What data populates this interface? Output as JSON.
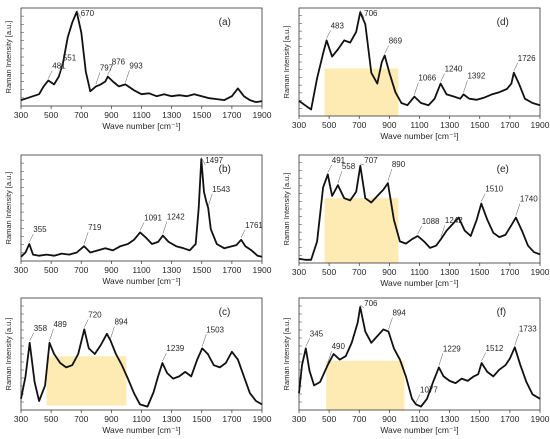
{
  "chart_data": [
    {
      "type": "line",
      "panel_label": "(a)",
      "xlabel": "Wave number [cm⁻¹]",
      "ylabel": "Raman Intensity [a.u.]",
      "xlim": [
        300,
        1900
      ],
      "x_ticks": [
        "300",
        "500",
        "700",
        "900",
        "1100",
        "1300",
        "1500",
        "1700",
        "1900"
      ],
      "peaks": [
        {
          "x": 481,
          "label": "481"
        },
        {
          "x": 551,
          "label": "551"
        },
        {
          "x": 670,
          "label": "670"
        },
        {
          "x": 797,
          "label": "797"
        },
        {
          "x": 876,
          "label": "876"
        },
        {
          "x": 993,
          "label": "993"
        }
      ],
      "series": [
        {
          "x": [
            300,
            340,
            380,
            420,
            450,
            481,
            520,
            551,
            580,
            610,
            640,
            670,
            700,
            730,
            760,
            797,
            830,
            860,
            876,
            910,
            950,
            993,
            1050,
            1100,
            1150,
            1200,
            1250,
            1300,
            1350,
            1400,
            1450,
            1500,
            1550,
            1600,
            1650,
            1700,
            1740,
            1780,
            1820,
            1860,
            1900
          ],
          "y": [
            0.06,
            0.08,
            0.1,
            0.12,
            0.2,
            0.26,
            0.22,
            0.3,
            0.45,
            0.7,
            0.85,
            0.96,
            0.75,
            0.35,
            0.15,
            0.2,
            0.22,
            0.25,
            0.3,
            0.25,
            0.2,
            0.22,
            0.16,
            0.12,
            0.13,
            0.1,
            0.12,
            0.1,
            0.11,
            0.1,
            0.12,
            0.1,
            0.08,
            0.07,
            0.06,
            0.1,
            0.18,
            0.1,
            0.06,
            0.04,
            0.05
          ]
        }
      ]
    },
    {
      "type": "line",
      "panel_label": "(b)",
      "xlabel": "Wave number [cm⁻¹]",
      "ylabel": "Raman Intensity [a.u.]",
      "xlim": [
        300,
        1900
      ],
      "x_ticks": [
        "300",
        "500",
        "700",
        "900",
        "1100",
        "1300",
        "1500",
        "1700",
        "1900"
      ],
      "peaks": [
        {
          "x": 355,
          "label": "355"
        },
        {
          "x": 719,
          "label": "719"
        },
        {
          "x": 1091,
          "label": "1091"
        },
        {
          "x": 1242,
          "label": "1242"
        },
        {
          "x": 1497,
          "label": "1497"
        },
        {
          "x": 1543,
          "label": "1543"
        },
        {
          "x": 1761,
          "label": "1761"
        }
      ],
      "series": [
        {
          "x": [
            300,
            330,
            355,
            380,
            420,
            470,
            520,
            570,
            620,
            670,
            719,
            760,
            810,
            860,
            910,
            960,
            1010,
            1050,
            1091,
            1130,
            1170,
            1210,
            1242,
            1280,
            1330,
            1380,
            1420,
            1460,
            1480,
            1497,
            1515,
            1530,
            1543,
            1560,
            1600,
            1650,
            1700,
            1730,
            1761,
            1790,
            1830,
            1870,
            1900
          ],
          "y": [
            0.04,
            0.08,
            0.16,
            0.06,
            0.05,
            0.06,
            0.05,
            0.07,
            0.06,
            0.08,
            0.14,
            0.08,
            0.1,
            0.12,
            0.1,
            0.14,
            0.16,
            0.2,
            0.27,
            0.22,
            0.16,
            0.18,
            0.24,
            0.18,
            0.14,
            0.12,
            0.1,
            0.16,
            0.5,
            0.96,
            0.65,
            0.56,
            0.5,
            0.3,
            0.16,
            0.12,
            0.14,
            0.15,
            0.2,
            0.14,
            0.1,
            0.05,
            0.04
          ]
        }
      ]
    },
    {
      "type": "line",
      "panel_label": "(c)",
      "xlabel": "Wave number [cm⁻¹]",
      "ylabel": "Raman Intensity [a.u.]",
      "xlim": [
        300,
        1900
      ],
      "x_ticks": [
        "300",
        "500",
        "700",
        "900",
        "1100",
        "1300",
        "1500",
        "1700",
        "1900"
      ],
      "peaks": [
        {
          "x": 358,
          "label": "358"
        },
        {
          "x": 489,
          "label": "489"
        },
        {
          "x": 720,
          "label": "720"
        },
        {
          "x": 894,
          "label": "894"
        },
        {
          "x": 1239,
          "label": "1239"
        },
        {
          "x": 1503,
          "label": "1503"
        }
      ],
      "highlight": {
        "x": [
          470,
          1000
        ],
        "y": [
          0.04,
          0.48
        ]
      },
      "series": [
        {
          "x": [
            300,
            330,
            358,
            390,
            420,
            460,
            489,
            520,
            560,
            600,
            640,
            680,
            720,
            750,
            790,
            830,
            870,
            894,
            930,
            970,
            1010,
            1050,
            1090,
            1140,
            1180,
            1210,
            1239,
            1270,
            1310,
            1350,
            1390,
            1430,
            1470,
            1503,
            1540,
            1580,
            1620,
            1660,
            1700,
            1740,
            1780,
            1820,
            1860,
            1900
          ],
          "y": [
            0.1,
            0.3,
            0.6,
            0.25,
            0.08,
            0.22,
            0.6,
            0.5,
            0.42,
            0.38,
            0.4,
            0.5,
            0.72,
            0.55,
            0.5,
            0.58,
            0.68,
            0.62,
            0.5,
            0.4,
            0.28,
            0.15,
            0.05,
            0.03,
            0.16,
            0.3,
            0.42,
            0.33,
            0.28,
            0.3,
            0.34,
            0.3,
            0.45,
            0.55,
            0.5,
            0.4,
            0.38,
            0.42,
            0.52,
            0.45,
            0.3,
            0.15,
            0.08,
            0.05
          ]
        }
      ]
    },
    {
      "type": "line",
      "panel_label": "(d)",
      "xlabel": "Wave number [cm⁻¹]",
      "ylabel": "Raman Intensity [a.u.]",
      "xlim": [
        300,
        1900
      ],
      "x_ticks": [
        "300",
        "500",
        "700",
        "900",
        "1100",
        "1300",
        "1500",
        "1700",
        "1900"
      ],
      "peaks": [
        {
          "x": 483,
          "label": "483"
        },
        {
          "x": 706,
          "label": "706"
        },
        {
          "x": 869,
          "label": "869"
        },
        {
          "x": 1066,
          "label": "1066"
        },
        {
          "x": 1240,
          "label": "1240"
        },
        {
          "x": 1392,
          "label": "1392"
        },
        {
          "x": 1726,
          "label": "1726"
        }
      ],
      "highlight": {
        "x": [
          470,
          960
        ],
        "y": [
          0.0,
          0.44
        ]
      },
      "series": [
        {
          "x": [
            300,
            340,
            380,
            420,
            460,
            483,
            520,
            560,
            600,
            640,
            680,
            706,
            740,
            780,
            820,
            850,
            869,
            900,
            940,
            980,
            1020,
            1066,
            1110,
            1160,
            1200,
            1240,
            1280,
            1330,
            1370,
            1392,
            1430,
            1480,
            1530,
            1580,
            1630,
            1680,
            1710,
            1726,
            1760,
            1800,
            1850,
            1900
          ],
          "y": [
            0.14,
            0.1,
            0.06,
            0.35,
            0.58,
            0.7,
            0.55,
            0.62,
            0.7,
            0.68,
            0.78,
            0.96,
            0.85,
            0.4,
            0.3,
            0.5,
            0.56,
            0.4,
            0.22,
            0.12,
            0.1,
            0.18,
            0.12,
            0.1,
            0.16,
            0.3,
            0.2,
            0.18,
            0.16,
            0.2,
            0.16,
            0.15,
            0.17,
            0.2,
            0.22,
            0.25,
            0.3,
            0.4,
            0.3,
            0.16,
            0.12,
            0.1
          ]
        }
      ]
    },
    {
      "type": "line",
      "panel_label": "(e)",
      "xlabel": "Wave number [cm⁻¹]",
      "ylabel": "Raman Intensity [a.u.]",
      "xlim": [
        300,
        1900
      ],
      "x_ticks": [
        "300",
        "500",
        "700",
        "900",
        "1100",
        "1300",
        "1500",
        "1700",
        "1900"
      ],
      "peaks": [
        {
          "x": 491,
          "label": "491"
        },
        {
          "x": 558,
          "label": "558"
        },
        {
          "x": 707,
          "label": "707"
        },
        {
          "x": 890,
          "label": "890"
        },
        {
          "x": 1088,
          "label": "1088"
        },
        {
          "x": 1242,
          "label": "1242"
        },
        {
          "x": 1510,
          "label": "1510"
        },
        {
          "x": 1740,
          "label": "1740"
        }
      ],
      "highlight": {
        "x": [
          470,
          960
        ],
        "y": [
          0.0,
          0.6
        ]
      },
      "series": [
        {
          "x": [
            300,
            340,
            380,
            420,
            460,
            491,
            520,
            558,
            600,
            640,
            680,
            707,
            740,
            780,
            820,
            860,
            890,
            930,
            970,
            1010,
            1050,
            1088,
            1130,
            1170,
            1210,
            1242,
            1280,
            1320,
            1360,
            1400,
            1440,
            1480,
            1510,
            1550,
            1590,
            1630,
            1670,
            1710,
            1740,
            1780,
            1820,
            1860,
            1900
          ],
          "y": [
            0.04,
            0.03,
            0.03,
            0.2,
            0.7,
            0.82,
            0.62,
            0.72,
            0.6,
            0.58,
            0.66,
            0.9,
            0.6,
            0.56,
            0.62,
            0.68,
            0.74,
            0.4,
            0.2,
            0.18,
            0.22,
            0.25,
            0.2,
            0.14,
            0.16,
            0.22,
            0.3,
            0.36,
            0.42,
            0.3,
            0.25,
            0.4,
            0.55,
            0.4,
            0.28,
            0.24,
            0.26,
            0.35,
            0.42,
            0.3,
            0.16,
            0.1,
            0.08
          ]
        }
      ]
    },
    {
      "type": "line",
      "panel_label": "(f)",
      "xlabel": "Wave number [cm⁻¹]",
      "ylabel": "Raman Intensity [a.u.]",
      "xlim": [
        300,
        1900
      ],
      "x_ticks": [
        "300",
        "500",
        "700",
        "900",
        "1100",
        "1300",
        "1500",
        "1700",
        "1900"
      ],
      "peaks": [
        {
          "x": 345,
          "label": "345"
        },
        {
          "x": 490,
          "label": "490"
        },
        {
          "x": 706,
          "label": "706"
        },
        {
          "x": 894,
          "label": "894"
        },
        {
          "x": 1077,
          "label": "1077"
        },
        {
          "x": 1229,
          "label": "1229"
        },
        {
          "x": 1512,
          "label": "1512"
        },
        {
          "x": 1733,
          "label": "1733"
        }
      ],
      "highlight": {
        "x": [
          480,
          1000
        ],
        "y": [
          0.0,
          0.44
        ]
      },
      "series": [
        {
          "x": [
            300,
            320,
            345,
            370,
            400,
            440,
            490,
            530,
            570,
            610,
            650,
            690,
            706,
            740,
            780,
            820,
            860,
            894,
            930,
            970,
            1010,
            1050,
            1077,
            1110,
            1150,
            1190,
            1229,
            1260,
            1300,
            1340,
            1380,
            1420,
            1460,
            1490,
            1512,
            1550,
            1590,
            1630,
            1670,
            1700,
            1733,
            1770,
            1810,
            1850,
            1900
          ],
          "y": [
            0.15,
            0.4,
            0.55,
            0.35,
            0.22,
            0.25,
            0.4,
            0.5,
            0.45,
            0.48,
            0.6,
            0.78,
            0.92,
            0.7,
            0.6,
            0.66,
            0.72,
            0.7,
            0.55,
            0.45,
            0.3,
            0.1,
            0.05,
            0.03,
            0.1,
            0.25,
            0.38,
            0.3,
            0.26,
            0.24,
            0.28,
            0.26,
            0.3,
            0.32,
            0.42,
            0.34,
            0.3,
            0.36,
            0.4,
            0.46,
            0.56,
            0.4,
            0.25,
            0.14,
            0.1
          ]
        }
      ]
    }
  ]
}
